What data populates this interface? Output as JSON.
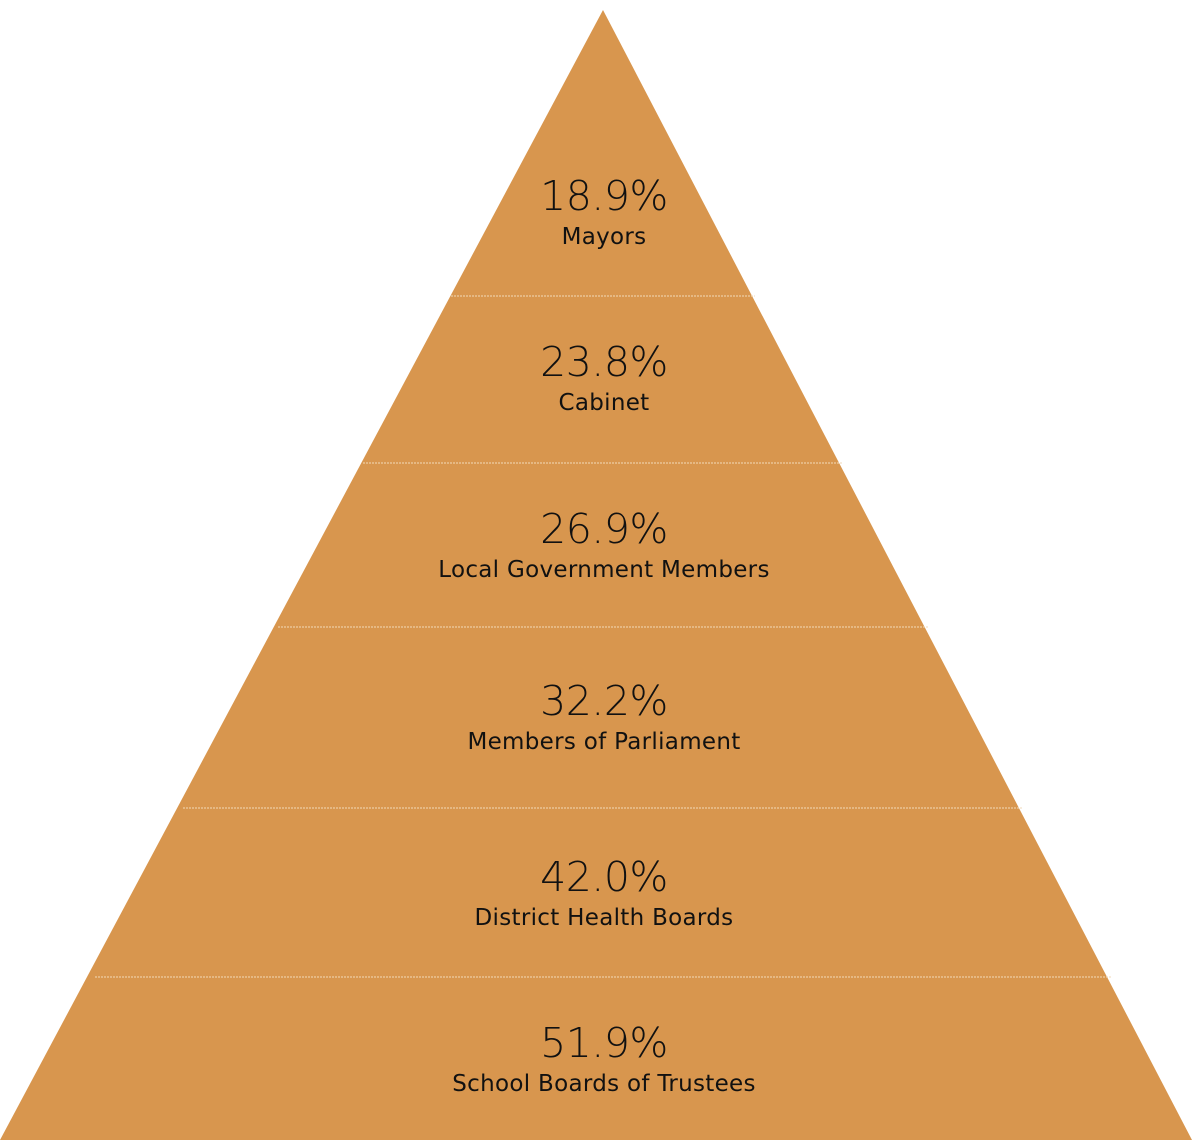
{
  "colors": {
    "fill": "#d8964e",
    "divider": "#f2d9b8",
    "text": "#111111"
  },
  "tiers": [
    {
      "value": "18.9%",
      "label": "Mayors"
    },
    {
      "value": "23.8%",
      "label": "Cabinet"
    },
    {
      "value": "26.9%",
      "label": "Local Government Members"
    },
    {
      "value": "32.2%",
      "label": "Members of Parliament"
    },
    {
      "value": "42.0%",
      "label": "District Health Boards"
    },
    {
      "value": "51.9%",
      "label": "School Boards of Trustees"
    }
  ]
}
